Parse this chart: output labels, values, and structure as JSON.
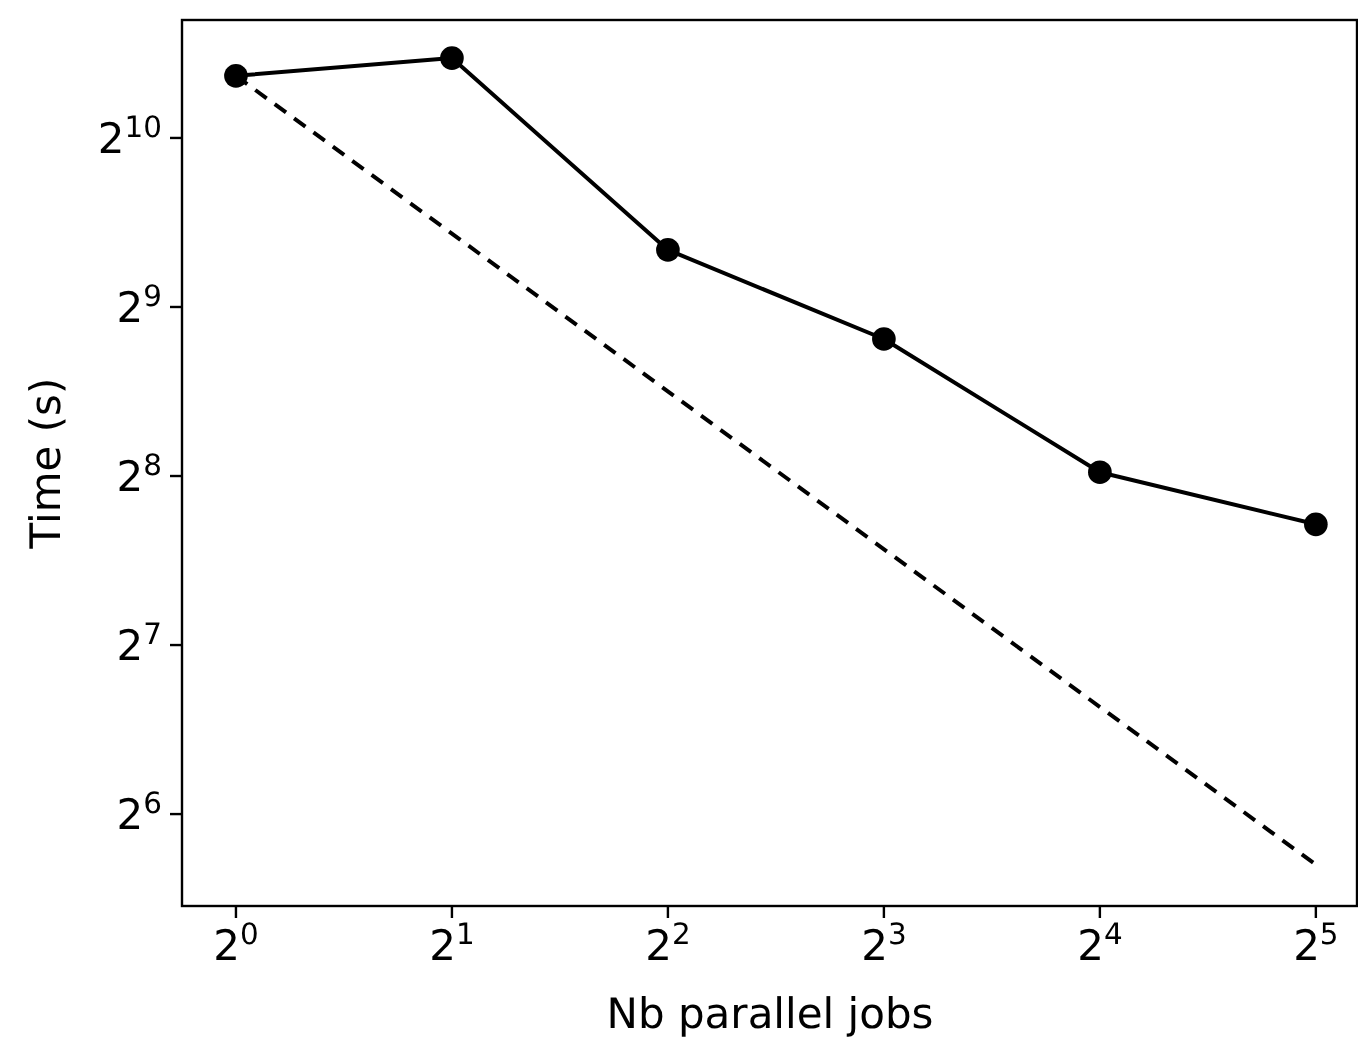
{
  "chart_data": {
    "type": "line",
    "xlabel": "Nb parallel jobs",
    "ylabel": "Time (s)",
    "log": "xy",
    "xlim": [
      0.841,
      36.4
    ],
    "ylim": [
      43.9,
      1661
    ],
    "xticks": [
      {
        "value": 1,
        "label": "2$^{0}$"
      },
      {
        "value": 2,
        "label": "2$^{1}$"
      },
      {
        "value": 4,
        "label": "2$^{2}$"
      },
      {
        "value": 8,
        "label": "2$^{3}$"
      },
      {
        "value": 16,
        "label": "2$^{4}$"
      },
      {
        "value": 32,
        "label": "2$^{5}$"
      }
    ],
    "yticks": [
      {
        "value": 64,
        "label": "2$^{6}$"
      },
      {
        "value": 128,
        "label": "2$^{7}$"
      },
      {
        "value": 256,
        "label": "2$^{8}$"
      },
      {
        "value": 512,
        "label": "2$^{9}$"
      },
      {
        "value": 1024,
        "label": "2$^{10}$"
      }
    ],
    "series": [
      {
        "color": "#000000",
        "x": [
          1,
          2,
          4,
          8,
          16,
          32
        ],
        "values": [
          1321,
          1421,
          647,
          449,
          260,
          210
        ],
        "marker": "circle",
        "line_style": "solid"
      },
      {
        "color": "#000000",
        "x": [
          1,
          32
        ],
        "values": [
          1321,
          52
        ],
        "marker": "none",
        "line_style": "dashed"
      }
    ]
  }
}
